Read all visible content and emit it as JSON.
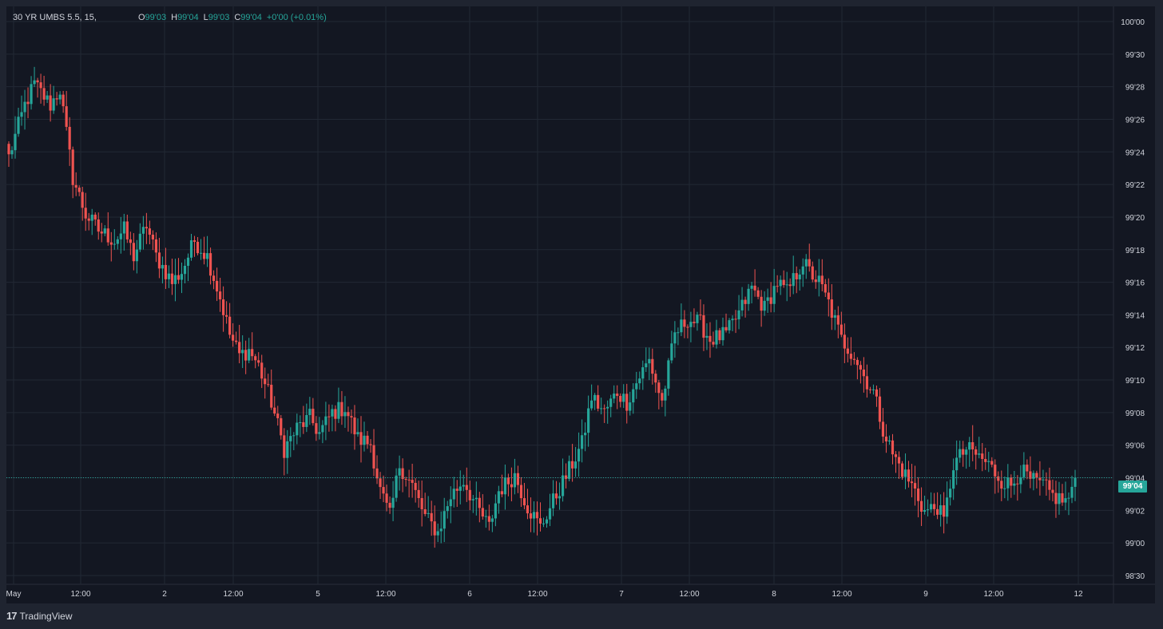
{
  "legend": {
    "symbol": "30 YR UMBS 5.5, 15,",
    "o_label": "O",
    "o_value": "99'03",
    "h_label": "H",
    "h_value": "99'04",
    "l_label": "L",
    "l_value": "99'03",
    "c_label": "C",
    "c_value": "99'04",
    "change": "+0'00 (+0.01%)"
  },
  "last_price_tag": "99'04",
  "brand": {
    "logo": "17",
    "name": "TradingView"
  },
  "colors": {
    "background": "#131722",
    "frame": "#1f2430",
    "up": "#26a69a",
    "down": "#ef5350",
    "grid": "#222834",
    "text": "#d1d4dc"
  },
  "chart_data": {
    "type": "candlestick",
    "title": "30 YR UMBS 5.5, 15",
    "y_unit": "32nds",
    "ylim": [
      98.9,
      100.05
    ],
    "y_ticks": [
      {
        "value": 100.0,
        "label": "100'00"
      },
      {
        "value": 99.9375,
        "label": "99'30"
      },
      {
        "value": 99.875,
        "label": "99'28"
      },
      {
        "value": 99.8125,
        "label": "99'26"
      },
      {
        "value": 99.75,
        "label": "99'24"
      },
      {
        "value": 99.6875,
        "label": "99'22"
      },
      {
        "value": 99.625,
        "label": "99'20"
      },
      {
        "value": 99.5625,
        "label": "99'18"
      },
      {
        "value": 99.5,
        "label": "99'16"
      },
      {
        "value": 99.4375,
        "label": "99'14"
      },
      {
        "value": 99.375,
        "label": "99'12"
      },
      {
        "value": 99.3125,
        "label": "99'10"
      },
      {
        "value": 99.25,
        "label": "99'08"
      },
      {
        "value": 99.1875,
        "label": "99'06"
      },
      {
        "value": 99.125,
        "label": "99'04"
      },
      {
        "value": 99.0625,
        "label": "99'02"
      },
      {
        "value": 99.0,
        "label": "99'00"
      },
      {
        "value": 98.9375,
        "label": "98'30"
      }
    ],
    "x_ticks": [
      "May",
      "12:00",
      "2",
      "12:00",
      "5",
      "12:00",
      "6",
      "12:00",
      "7",
      "12:00",
      "8",
      "12:00",
      "9",
      "12:00",
      "12"
    ],
    "last_price": 99.125,
    "anchors": [
      [
        0,
        99.74
      ],
      [
        5,
        99.84
      ],
      [
        8,
        99.88
      ],
      [
        13,
        99.84
      ],
      [
        16,
        99.87
      ],
      [
        20,
        99.7
      ],
      [
        24,
        99.63
      ],
      [
        28,
        99.6
      ],
      [
        33,
        99.58
      ],
      [
        36,
        99.6
      ],
      [
        39,
        99.55
      ],
      [
        43,
        99.61
      ],
      [
        46,
        99.55
      ],
      [
        51,
        99.5
      ],
      [
        54,
        99.52
      ],
      [
        58,
        99.58
      ],
      [
        62,
        99.55
      ],
      [
        66,
        99.47
      ],
      [
        69,
        99.4
      ],
      [
        72,
        99.36
      ],
      [
        75,
        99.37
      ],
      [
        78,
        99.34
      ],
      [
        82,
        99.27
      ],
      [
        86,
        99.18
      ],
      [
        90,
        99.22
      ],
      [
        94,
        99.24
      ],
      [
        97,
        99.21
      ],
      [
        101,
        99.25
      ],
      [
        105,
        99.26
      ],
      [
        109,
        99.2
      ],
      [
        113,
        99.19
      ],
      [
        116,
        99.1
      ],
      [
        119,
        99.05
      ],
      [
        122,
        99.15
      ],
      [
        126,
        99.11
      ],
      [
        130,
        99.05
      ],
      [
        134,
        99.02
      ],
      [
        138,
        99.09
      ],
      [
        142,
        99.12
      ],
      [
        146,
        99.07
      ],
      [
        150,
        99.03
      ],
      [
        153,
        99.1
      ],
      [
        158,
        99.13
      ],
      [
        162,
        99.07
      ],
      [
        166,
        99.03
      ],
      [
        170,
        99.08
      ],
      [
        175,
        99.14
      ],
      [
        179,
        99.19
      ],
      [
        182,
        99.28
      ],
      [
        186,
        99.25
      ],
      [
        190,
        99.29
      ],
      [
        193,
        99.27
      ],
      [
        197,
        99.32
      ],
      [
        200,
        99.35
      ],
      [
        204,
        99.27
      ],
      [
        208,
        99.4
      ],
      [
        212,
        99.43
      ],
      [
        216,
        99.42
      ],
      [
        219,
        99.39
      ],
      [
        224,
        99.4
      ],
      [
        228,
        99.44
      ],
      [
        232,
        99.49
      ],
      [
        236,
        99.45
      ],
      [
        240,
        99.5
      ],
      [
        243,
        99.48
      ],
      [
        248,
        99.54
      ],
      [
        250,
        99.52
      ],
      [
        253,
        99.5
      ],
      [
        256,
        99.46
      ],
      [
        260,
        99.39
      ],
      [
        264,
        99.36
      ],
      [
        267,
        99.32
      ],
      [
        270,
        99.29
      ],
      [
        273,
        99.22
      ],
      [
        276,
        99.17
      ],
      [
        279,
        99.14
      ],
      [
        283,
        99.1
      ],
      [
        286,
        99.06
      ],
      [
        290,
        99.07
      ],
      [
        292,
        99.04
      ],
      [
        295,
        99.15
      ],
      [
        299,
        99.18
      ],
      [
        302,
        99.17
      ],
      [
        306,
        99.15
      ],
      [
        310,
        99.12
      ],
      [
        313,
        99.11
      ],
      [
        316,
        99.14
      ],
      [
        319,
        99.12
      ],
      [
        323,
        99.11
      ],
      [
        326,
        99.09
      ],
      [
        330,
        99.08
      ],
      [
        333,
        99.1
      ]
    ]
  },
  "x_ticks_pos_note": "x tick labels as printed along the time axis"
}
